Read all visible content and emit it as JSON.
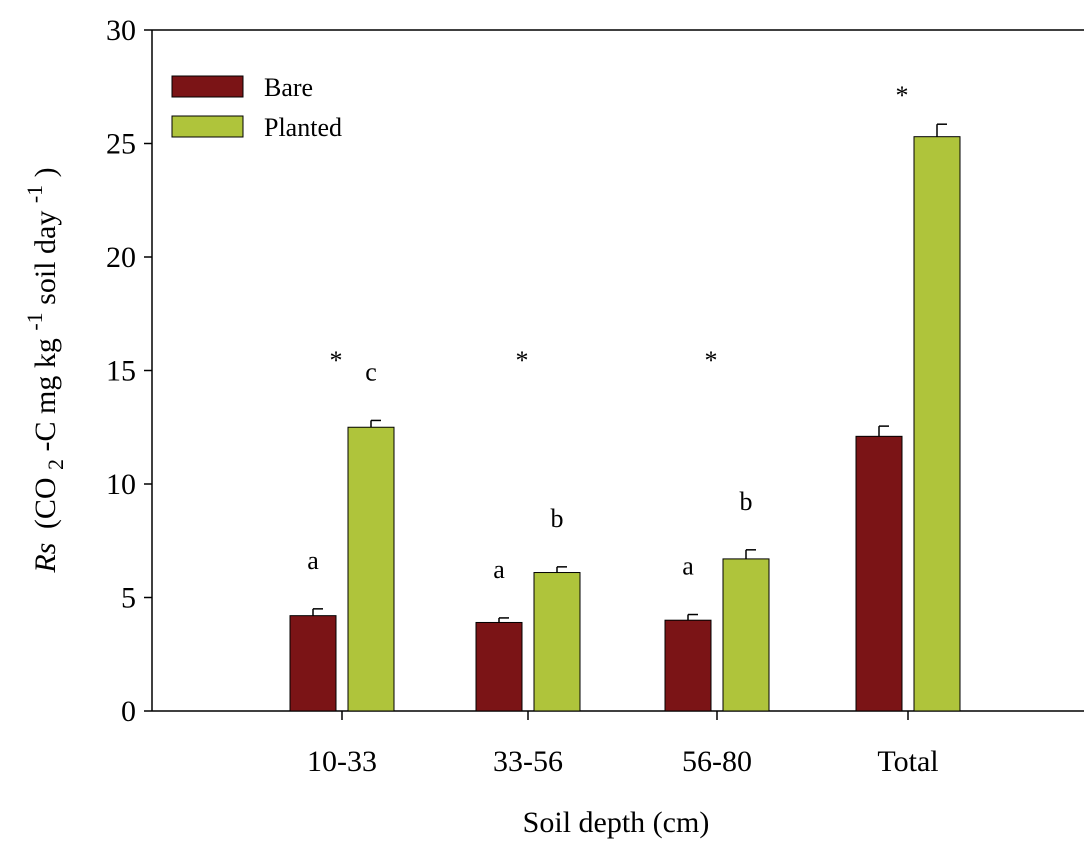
{
  "chart_data": {
    "type": "bar",
    "categories": [
      "10-33",
      "33-56",
      "56-80",
      "Total"
    ],
    "series": [
      {
        "name": "Bare",
        "color": "#7b1416",
        "values": [
          4.2,
          3.9,
          4.0,
          12.1
        ],
        "errors": [
          0.3,
          0.2,
          0.25,
          0.45
        ],
        "letters": [
          "a",
          "a",
          "a",
          ""
        ]
      },
      {
        "name": "Planted",
        "color": "#afc43b",
        "values": [
          12.5,
          6.1,
          6.7,
          25.3
        ],
        "errors": [
          0.3,
          0.25,
          0.4,
          0.55
        ],
        "letters": [
          "c",
          "b",
          "b",
          ""
        ]
      }
    ],
    "significance": [
      "*",
      "*",
      "*",
      "*"
    ],
    "ylim": [
      0,
      30
    ],
    "yticks": [
      0,
      5,
      10,
      15,
      20,
      25,
      30
    ],
    "xlabel": "Soil depth (cm)",
    "ylabel": {
      "italic": "Rs",
      "text": "(CO",
      "sub": "2",
      "mid": "-C mg kg",
      "sup1": "-1",
      "mid2": " soil day",
      "sup2": "-1",
      "end": ")"
    },
    "legend_position": "top-left",
    "grid": false
  }
}
